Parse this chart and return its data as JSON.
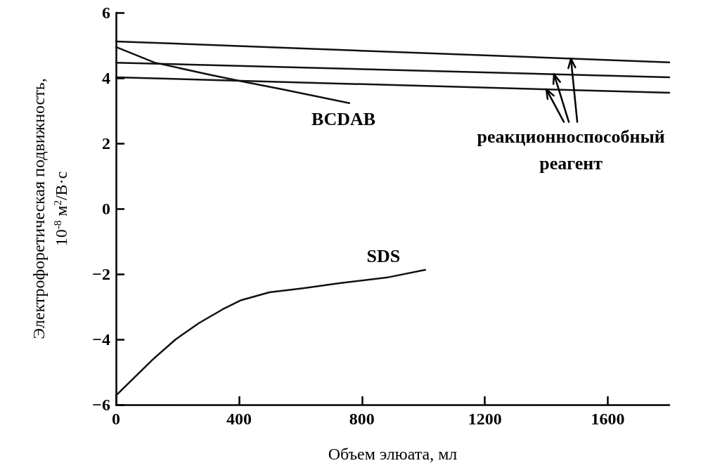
{
  "chart_data": {
    "type": "line",
    "xlabel": "Объем элюата, мл",
    "ylabel": "Электрофоретическая подвижность, 10$^{-8}$ м$^{2}$/В·с",
    "xlim": [
      0,
      1800
    ],
    "xticks": [
      0,
      400,
      800,
      1200,
      1600
    ],
    "ylim": [
      -6,
      6
    ],
    "yticks": [
      -6,
      -4,
      -2,
      0,
      2,
      4,
      6
    ],
    "marker": "none",
    "line_style": "solid",
    "series": [
      {
        "color": "#111111",
        "x": [
          0,
          1800
        ],
        "values": [
          5.12,
          4.48
        ]
      },
      {
        "color": "#111111",
        "x": [
          0,
          1800
        ],
        "values": [
          4.47,
          4.02
        ]
      },
      {
        "color": "#111111",
        "x": [
          0,
          1800
        ],
        "values": [
          4.02,
          3.55
        ]
      },
      {
        "color": "#111111",
        "x": [
          0,
          126,
          309,
          423,
          537,
          651,
          759
        ],
        "values": [
          4.95,
          4.47,
          4.09,
          3.87,
          3.66,
          3.44,
          3.23
        ]
      },
      {
        "color": "#111111",
        "x": [
          0,
          119,
          194,
          270,
          347,
          407,
          499,
          613,
          727,
          880,
          1006
        ],
        "values": [
          -5.72,
          -4.62,
          -4.0,
          -3.5,
          -3.08,
          -2.8,
          -2.56,
          -2.43,
          -2.28,
          -2.11,
          -1.87
        ]
      }
    ],
    "annotations": [
      "BCDAB",
      "SDS",
      {
        "text": "реакционноспособный\nреагент",
        "x": 1480,
        "y": 4.59
      }
    ]
  }
}
